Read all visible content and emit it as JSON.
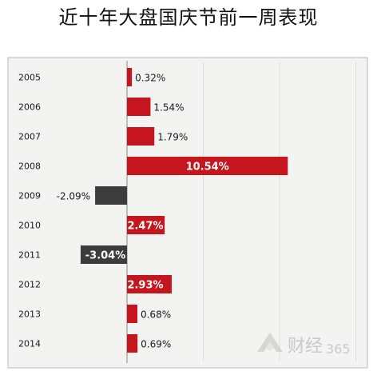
{
  "page": {
    "title": "近十年大盘国庆节前一周表现"
  },
  "chart_data": {
    "type": "bar",
    "orientation": "horizontal",
    "title": "近十年大盘国庆节前一周表现",
    "categories": [
      "2005",
      "2006",
      "2007",
      "2008",
      "2009",
      "2010",
      "2011",
      "2012",
      "2013",
      "2014"
    ],
    "values": [
      0.32,
      1.54,
      1.79,
      10.54,
      -2.09,
      2.47,
      -3.04,
      2.93,
      0.68,
      0.69
    ],
    "labels": [
      "0.32%",
      "1.54%",
      "1.79%",
      "10.54%",
      "-2.09%",
      "2.47%",
      "-3.04%",
      "2.93%",
      "0.68%",
      "0.69%"
    ],
    "label_inside": [
      false,
      false,
      false,
      true,
      false,
      true,
      true,
      true,
      false,
      false
    ],
    "xlim": [
      -5,
      15
    ],
    "grid": true,
    "legend": "none",
    "colors": {
      "positive": "#c4161c",
      "negative": "#3c3c3c",
      "panel_bg": "#f3f3f1",
      "frame": "#b9b9b9",
      "grid": "#dcdcdc",
      "text": "#1a1a1a",
      "inside_text": "#ffffff"
    }
  },
  "watermark": {
    "icon": "finance-logo-icon",
    "text": "财经",
    "suffix": "365"
  }
}
